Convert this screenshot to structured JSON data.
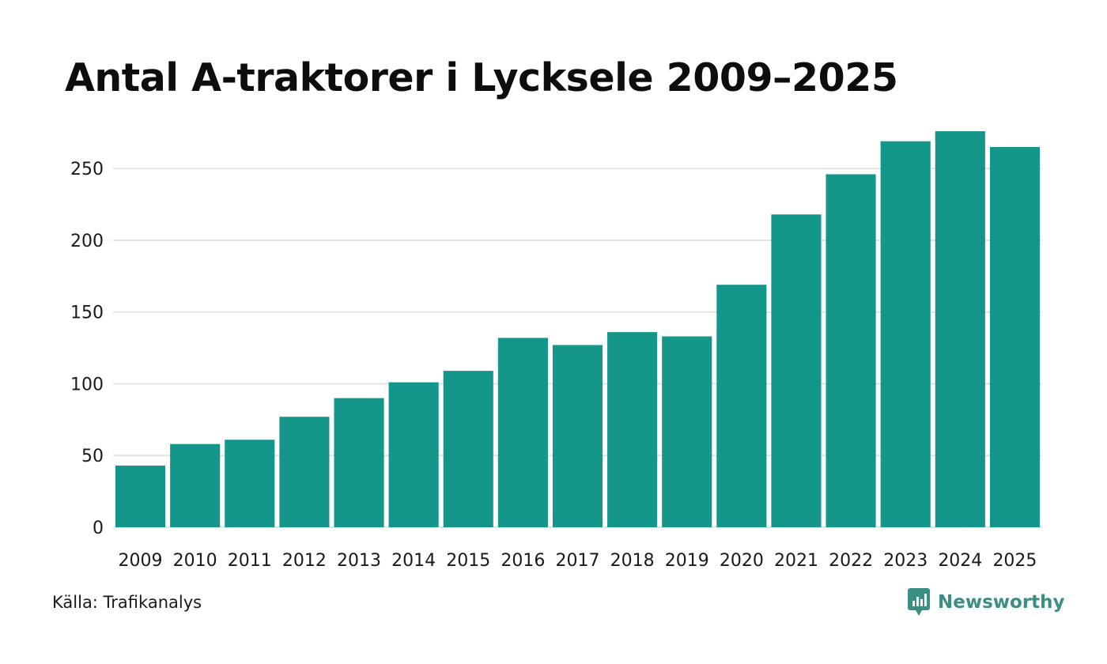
{
  "chart_data": {
    "type": "bar",
    "title": "Antal A-traktorer i Lycksele 2009–2025",
    "categories": [
      "2009",
      "2010",
      "2011",
      "2012",
      "2013",
      "2014",
      "2015",
      "2016",
      "2017",
      "2018",
      "2019",
      "2020",
      "2021",
      "2022",
      "2023",
      "2024",
      "2025"
    ],
    "values": [
      43,
      58,
      61,
      77,
      90,
      101,
      109,
      132,
      127,
      136,
      133,
      169,
      218,
      246,
      269,
      276,
      265
    ],
    "yticks": [
      0,
      50,
      100,
      150,
      200,
      250
    ],
    "ylim": [
      0,
      276
    ],
    "xlabel": "",
    "ylabel": "",
    "grid": true,
    "bar_color": "#15968a"
  },
  "source": "Källa: Trafikanalys",
  "brand": {
    "name": "Newsworthy",
    "icon": "newsworthy-logo-icon",
    "color": "#3b8f82"
  }
}
